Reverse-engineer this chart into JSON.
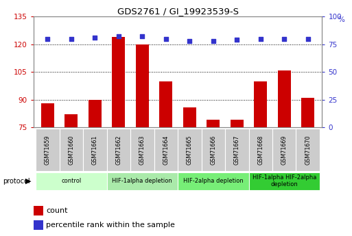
{
  "title": "GDS2761 / GI_19923539-S",
  "samples": [
    "GSM71659",
    "GSM71660",
    "GSM71661",
    "GSM71662",
    "GSM71663",
    "GSM71664",
    "GSM71665",
    "GSM71666",
    "GSM71667",
    "GSM71668",
    "GSM71669",
    "GSM71670"
  ],
  "counts": [
    88,
    82,
    90,
    124,
    120,
    100,
    86,
    79,
    79,
    100,
    106,
    91
  ],
  "percentile_ranks": [
    80,
    80,
    81,
    82,
    82,
    80,
    78,
    78,
    79,
    80,
    80,
    80
  ],
  "ylim_left": [
    75,
    135
  ],
  "yticks_left": [
    75,
    90,
    105,
    120,
    135
  ],
  "ylim_right": [
    0,
    100
  ],
  "yticks_right": [
    0,
    25,
    50,
    75,
    100
  ],
  "bar_color": "#cc0000",
  "dot_color": "#3333cc",
  "bar_bottom": 75,
  "protocol_groups": [
    {
      "label": "control",
      "start": 0,
      "end": 2,
      "color": "#ccffcc"
    },
    {
      "label": "HIF-1alpha depletion",
      "start": 3,
      "end": 5,
      "color": "#aaeaaa"
    },
    {
      "label": "HIF-2alpha depletion",
      "start": 6,
      "end": 8,
      "color": "#77ee77"
    },
    {
      "label": "HIF-1alpha HIF-2alpha\ndepletion",
      "start": 9,
      "end": 11,
      "color": "#33cc33"
    }
  ],
  "grid_yticks": [
    90,
    105,
    120
  ],
  "tick_label_color_left": "#cc0000",
  "tick_label_color_right": "#3333cc",
  "bg_color": "#ffffff",
  "sample_bg_color": "#cccccc",
  "sample_border_color": "#ffffff"
}
